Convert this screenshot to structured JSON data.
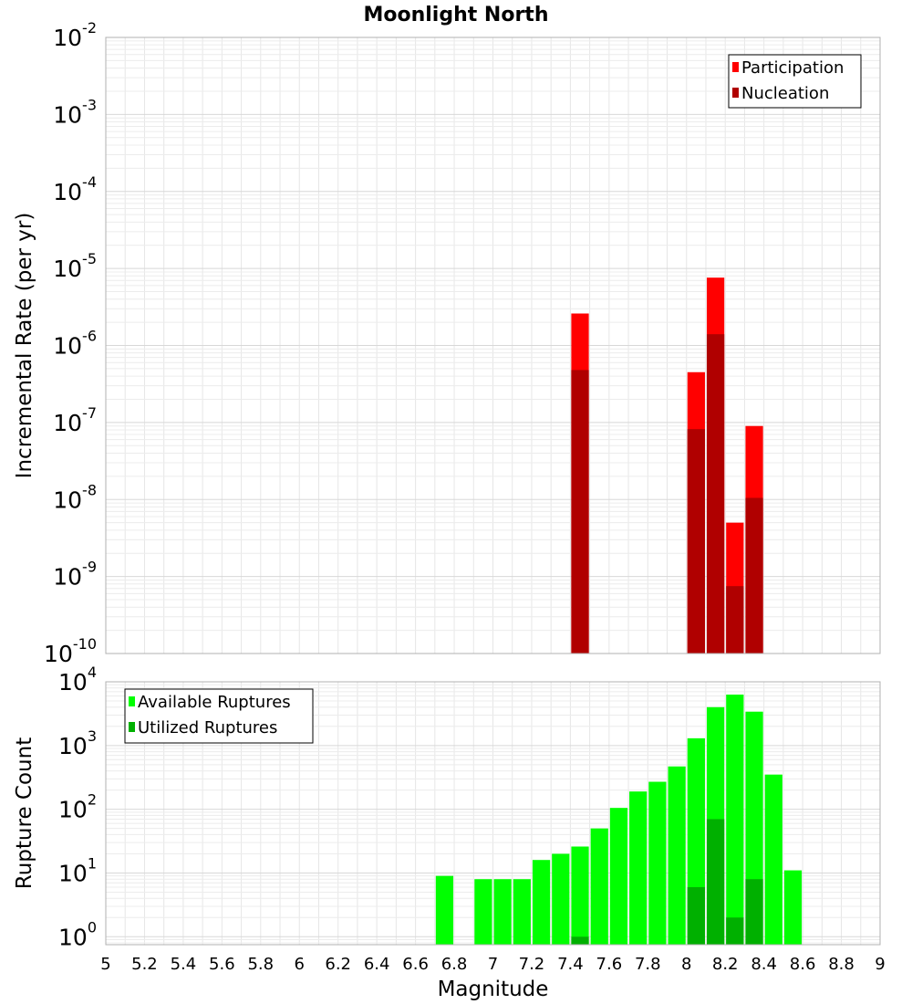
{
  "chart_data": [
    {
      "type": "bar",
      "title": "Moonlight North",
      "ylabel": "Incremental Rate (per yr)",
      "xlabel": "",
      "yscale": "log",
      "ylim": [
        1e-10,
        0.01
      ],
      "xlim": [
        5,
        9
      ],
      "bin_width": 0.1,
      "grid": true,
      "legend_position": "top-right",
      "y_ticks": [
        {
          "base": "10",
          "exp": "-10",
          "value": 1e-10
        },
        {
          "base": "10",
          "exp": "-9",
          "value": 1e-09
        },
        {
          "base": "10",
          "exp": "-8",
          "value": 1e-08
        },
        {
          "base": "10",
          "exp": "-7",
          "value": 1e-07
        },
        {
          "base": "10",
          "exp": "-6",
          "value": 1e-06
        },
        {
          "base": "10",
          "exp": "-5",
          "value": 1e-05
        },
        {
          "base": "10",
          "exp": "-4",
          "value": 0.0001
        },
        {
          "base": "10",
          "exp": "-3",
          "value": 0.001
        },
        {
          "base": "10",
          "exp": "-2",
          "value": 0.01
        }
      ],
      "series": [
        {
          "name": "Participation",
          "color": "#ff0000",
          "points": [
            {
              "x": 7.45,
              "y": 2.6e-06
            },
            {
              "x": 8.05,
              "y": 4.5e-07
            },
            {
              "x": 8.15,
              "y": 7.6e-06
            },
            {
              "x": 8.25,
              "y": 5e-09
            },
            {
              "x": 8.35,
              "y": 9e-08
            }
          ]
        },
        {
          "name": "Nucleation",
          "color": "#b00000",
          "points": [
            {
              "x": 7.45,
              "y": 4.8e-07
            },
            {
              "x": 8.05,
              "y": 8.2e-08
            },
            {
              "x": 8.15,
              "y": 1.4e-06
            },
            {
              "x": 8.25,
              "y": 7.5e-10
            },
            {
              "x": 8.35,
              "y": 1.05e-08
            }
          ]
        }
      ]
    },
    {
      "type": "bar",
      "title": "",
      "ylabel": "Rupture Count",
      "xlabel": "Magnitude",
      "yscale": "log",
      "ylim": [
        0.75,
        10000
      ],
      "xlim": [
        5,
        9
      ],
      "bin_width": 0.1,
      "grid": true,
      "legend_position": "top-left",
      "y_ticks": [
        {
          "base": "10",
          "exp": "0",
          "value": 1
        },
        {
          "base": "10",
          "exp": "1",
          "value": 10
        },
        {
          "base": "10",
          "exp": "2",
          "value": 100
        },
        {
          "base": "10",
          "exp": "3",
          "value": 1000
        },
        {
          "base": "10",
          "exp": "4",
          "value": 10000
        }
      ],
      "x_ticks": [
        "5",
        "5.2",
        "5.4",
        "5.6",
        "5.8",
        "6",
        "6.2",
        "6.4",
        "6.6",
        "6.8",
        "7",
        "7.2",
        "7.4",
        "7.6",
        "7.8",
        "8",
        "8.2",
        "8.4",
        "8.6",
        "8.8",
        "9"
      ],
      "series": [
        {
          "name": "Available Ruptures",
          "color": "#00ff00",
          "points": [
            {
              "x": 6.75,
              "y": 9
            },
            {
              "x": 6.95,
              "y": 8
            },
            {
              "x": 7.05,
              "y": 8
            },
            {
              "x": 7.15,
              "y": 8
            },
            {
              "x": 7.25,
              "y": 16
            },
            {
              "x": 7.35,
              "y": 20
            },
            {
              "x": 7.45,
              "y": 26
            },
            {
              "x": 7.55,
              "y": 50
            },
            {
              "x": 7.65,
              "y": 105
            },
            {
              "x": 7.75,
              "y": 190
            },
            {
              "x": 7.85,
              "y": 270
            },
            {
              "x": 7.95,
              "y": 470
            },
            {
              "x": 8.05,
              "y": 1300
            },
            {
              "x": 8.15,
              "y": 4000
            },
            {
              "x": 8.25,
              "y": 6300
            },
            {
              "x": 8.35,
              "y": 3400
            },
            {
              "x": 8.45,
              "y": 350
            },
            {
              "x": 8.55,
              "y": 11
            }
          ]
        },
        {
          "name": "Utilized Ruptures",
          "color": "#00b000",
          "points": [
            {
              "x": 7.45,
              "y": 1
            },
            {
              "x": 8.05,
              "y": 6
            },
            {
              "x": 8.15,
              "y": 70
            },
            {
              "x": 8.25,
              "y": 2
            },
            {
              "x": 8.35,
              "y": 8
            }
          ]
        }
      ]
    }
  ]
}
